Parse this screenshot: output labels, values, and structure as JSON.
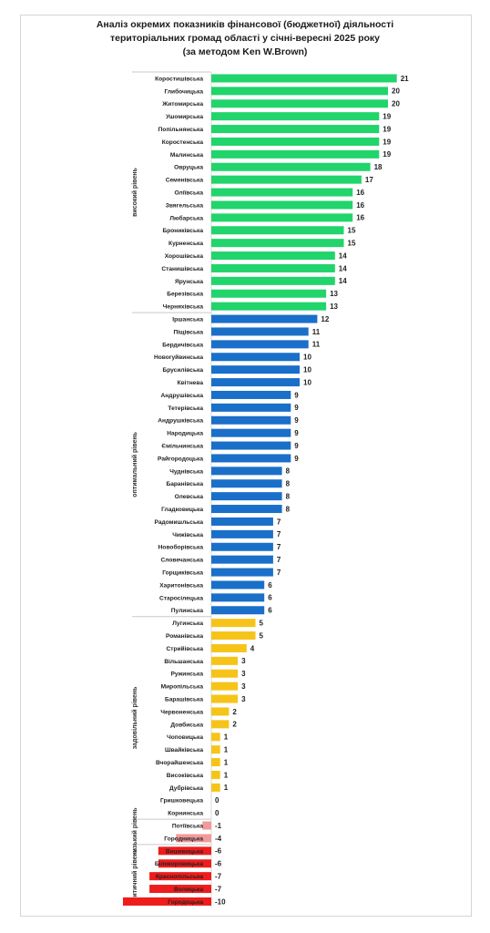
{
  "title_lines": [
    "Аналіз окремих показників фінансової (бюджетної) діяльності",
    "територіальних громад області у січні-вересні 2025 року",
    "(за методом  Ken W.Brown)"
  ],
  "colors": {
    "high": "#21d46b",
    "optimal": "#1a6fc9",
    "satisfactory": "#f6c419",
    "low": "#f29a9a",
    "critical": "#ee1c1c"
  },
  "chart_data": {
    "type": "bar",
    "orientation": "horizontal",
    "title": "Аналіз окремих показників фінансової (бюджетної) діяльності територіальних громад області у січні-вересні 2025 року (за методом  Ken W.Brown)",
    "xlim": [
      -10,
      21
    ],
    "grid": false,
    "legend": "none",
    "groups": [
      {
        "name": "високий рівень",
        "color_key": "high"
      },
      {
        "name": "оптимальний рівень",
        "color_key": "optimal"
      },
      {
        "name": "задовільний рівень",
        "color_key": "satisfactory"
      },
      {
        "name": "низький рівень",
        "color_key": "low"
      },
      {
        "name": "критичний рівень",
        "color_key": "critical"
      }
    ],
    "bars": [
      {
        "label": "Коростишівська",
        "value": 21,
        "group": 0
      },
      {
        "label": "Глибочицька",
        "value": 20,
        "group": 0
      },
      {
        "label": "Житомирська",
        "value": 20,
        "group": 0
      },
      {
        "label": "Ушомирська",
        "value": 19,
        "group": 0
      },
      {
        "label": "Попільнянська",
        "value": 19,
        "group": 0
      },
      {
        "label": "Коростенська",
        "value": 19,
        "group": 0
      },
      {
        "label": "Малинська",
        "value": 19,
        "group": 0
      },
      {
        "label": "Овруцька",
        "value": 18,
        "group": 0
      },
      {
        "label": "Семенівська",
        "value": 17,
        "group": 0
      },
      {
        "label": "Оліївська",
        "value": 16,
        "group": 0
      },
      {
        "label": "Звягельська",
        "value": 16,
        "group": 0
      },
      {
        "label": "Любарська",
        "value": 16,
        "group": 0
      },
      {
        "label": "Брониківська",
        "value": 15,
        "group": 0
      },
      {
        "label": "Курненська",
        "value": 15,
        "group": 0
      },
      {
        "label": "Хорошівська",
        "value": 14,
        "group": 0
      },
      {
        "label": "Станишівська",
        "value": 14,
        "group": 0
      },
      {
        "label": "Ярунська",
        "value": 14,
        "group": 0
      },
      {
        "label": "Березівська",
        "value": 13,
        "group": 0
      },
      {
        "label": "Черняхівська",
        "value": 13,
        "group": 0
      },
      {
        "label": "Іршанська",
        "value": 12,
        "group": 1
      },
      {
        "label": "Піщівська",
        "value": 11,
        "group": 1
      },
      {
        "label": "Бердичівська",
        "value": 11,
        "group": 1
      },
      {
        "label": "Новогуйвинська",
        "value": 10,
        "group": 1
      },
      {
        "label": "Брусилівська",
        "value": 10,
        "group": 1
      },
      {
        "label": "Квітнева",
        "value": 10,
        "group": 1
      },
      {
        "label": "Андрушівська",
        "value": 9,
        "group": 1
      },
      {
        "label": "Тетерівська",
        "value": 9,
        "group": 1
      },
      {
        "label": "Андрушківська",
        "value": 9,
        "group": 1
      },
      {
        "label": "Народицька",
        "value": 9,
        "group": 1
      },
      {
        "label": "Ємільчинська",
        "value": 9,
        "group": 1
      },
      {
        "label": "Райгородоцька",
        "value": 9,
        "group": 1
      },
      {
        "label": "Чуднівська",
        "value": 8,
        "group": 1
      },
      {
        "label": "Баранівська",
        "value": 8,
        "group": 1
      },
      {
        "label": "Олевська",
        "value": 8,
        "group": 1
      },
      {
        "label": "Гладковицька",
        "value": 8,
        "group": 1
      },
      {
        "label": "Радомишльська",
        "value": 7,
        "group": 1
      },
      {
        "label": "Чижівська",
        "value": 7,
        "group": 1
      },
      {
        "label": "Новоборівська",
        "value": 7,
        "group": 1
      },
      {
        "label": "Словечанська",
        "value": 7,
        "group": 1
      },
      {
        "label": "Горщиківська",
        "value": 7,
        "group": 1
      },
      {
        "label": "Харитонівська",
        "value": 6,
        "group": 1
      },
      {
        "label": "Старосілецька",
        "value": 6,
        "group": 1
      },
      {
        "label": "Пулинська",
        "value": 6,
        "group": 1
      },
      {
        "label": "Лугинська",
        "value": 5,
        "group": 2
      },
      {
        "label": "Романівська",
        "value": 5,
        "group": 2
      },
      {
        "label": "Стрийівська",
        "value": 4,
        "group": 2
      },
      {
        "label": "Вільшанська",
        "value": 3,
        "group": 2
      },
      {
        "label": "Ружинська",
        "value": 3,
        "group": 2
      },
      {
        "label": "Миропільська",
        "value": 3,
        "group": 2
      },
      {
        "label": "Барашівська",
        "value": 3,
        "group": 2
      },
      {
        "label": "Червоненська",
        "value": 2,
        "group": 2
      },
      {
        "label": "Довбиська",
        "value": 2,
        "group": 2
      },
      {
        "label": "Чоповицька",
        "value": 1,
        "group": 2
      },
      {
        "label": "Швайківська",
        "value": 1,
        "group": 2
      },
      {
        "label": "Вчорайшенська",
        "value": 1,
        "group": 2
      },
      {
        "label": "Високівська",
        "value": 1,
        "group": 2
      },
      {
        "label": "Дубрівська",
        "value": 1,
        "group": 2
      },
      {
        "label": "Гришковецька",
        "value": 0,
        "group": 2
      },
      {
        "label": "Корнинська",
        "value": 0,
        "group": 2
      },
      {
        "label": "Потіївська",
        "value": -1,
        "group": 3
      },
      {
        "label": "Городницька",
        "value": -4,
        "group": 3
      },
      {
        "label": "Вишевицька",
        "value": -6,
        "group": 4
      },
      {
        "label": "Білокоровицька",
        "value": -6,
        "group": 4
      },
      {
        "label": "Краснопільська",
        "value": -7,
        "group": 4
      },
      {
        "label": "Волицька",
        "value": -7,
        "group": 4
      },
      {
        "label": "Городоцька",
        "value": -10,
        "group": 4
      }
    ]
  }
}
